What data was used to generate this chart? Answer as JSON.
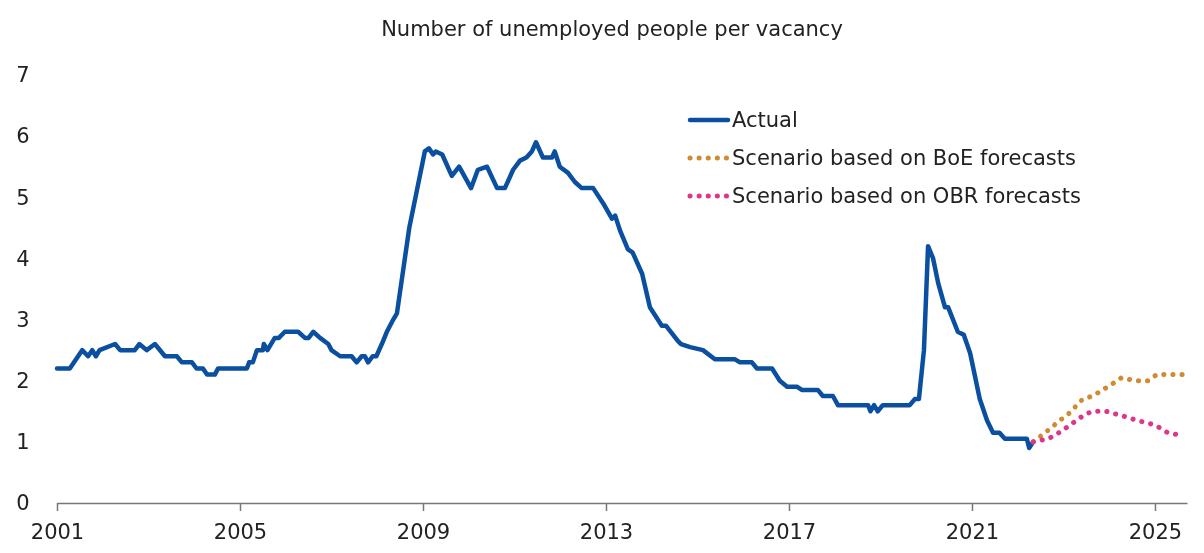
{
  "chart_data": {
    "type": "line",
    "title": "Number of unemployed people per vacancy",
    "xlim": [
      2001,
      2025.7
    ],
    "xticks": [
      2001,
      2005,
      2009,
      2013,
      2017,
      2021,
      2025
    ],
    "ylim": [
      0,
      7
    ],
    "yticks": [
      0,
      1,
      2,
      3,
      4,
      5,
      6,
      7
    ],
    "grid": false,
    "legend": "top right",
    "marker": "none",
    "series": [
      {
        "name": "Actual",
        "color": "#0a4fa0",
        "line_style": "solid",
        "x": [
          2001.0,
          2001.28,
          2001.55,
          2001.68,
          2001.77,
          2001.85,
          2001.93,
          2002.27,
          2002.38,
          2002.7,
          2002.8,
          2002.96,
          2003.14,
          2003.36,
          2003.62,
          2003.73,
          2003.95,
          2004.05,
          2004.19,
          2004.28,
          2004.45,
          2004.52,
          2005.15,
          2005.2,
          2005.28,
          2005.37,
          2005.5,
          2005.52,
          2005.6,
          2005.76,
          2005.85,
          2005.98,
          2006.27,
          2006.42,
          2006.5,
          2006.6,
          2006.75,
          2006.93,
          2007.0,
          2007.19,
          2007.44,
          2007.55,
          2007.66,
          2007.73,
          2007.8,
          2007.9,
          2007.98,
          2008.1,
          2008.21,
          2008.35,
          2008.43,
          2008.7,
          2009.04,
          2009.13,
          2009.22,
          2009.28,
          2009.42,
          2009.63,
          2009.79,
          2010.05,
          2010.2,
          2010.4,
          2010.62,
          2010.79,
          2010.97,
          2011.12,
          2011.26,
          2011.38,
          2011.47,
          2011.62,
          2011.82,
          2011.88,
          2011.99,
          2012.17,
          2012.32,
          2012.47,
          2012.72,
          2012.94,
          2013.13,
          2013.2,
          2013.31,
          2013.48,
          2013.58,
          2013.79,
          2013.96,
          2014.22,
          2014.31,
          2014.57,
          2014.64,
          2014.84,
          2015.12,
          2015.38,
          2015.82,
          2015.93,
          2016.19,
          2016.3,
          2016.63,
          2016.8,
          2016.96,
          2017.18,
          2017.28,
          2017.63,
          2017.74,
          2017.96,
          2018.07,
          2018.73,
          2018.78,
          2018.86,
          2018.94,
          2019.05,
          2019.64,
          2019.75,
          2019.84,
          2019.95,
          2020.04,
          2020.15,
          2020.26,
          2020.41,
          2020.48,
          2020.69,
          2020.82,
          2020.96,
          2021.17,
          2021.33,
          2021.46,
          2021.6,
          2021.72,
          2022.2,
          2022.25,
          2022.34
        ],
        "values": [
          2.2,
          2.2,
          2.5,
          2.4,
          2.5,
          2.4,
          2.5,
          2.6,
          2.5,
          2.5,
          2.6,
          2.5,
          2.6,
          2.4,
          2.4,
          2.3,
          2.3,
          2.2,
          2.2,
          2.1,
          2.1,
          2.2,
          2.2,
          2.3,
          2.3,
          2.5,
          2.5,
          2.6,
          2.5,
          2.7,
          2.7,
          2.8,
          2.8,
          2.7,
          2.7,
          2.8,
          2.7,
          2.6,
          2.5,
          2.4,
          2.4,
          2.3,
          2.4,
          2.4,
          2.3,
          2.4,
          2.4,
          2.6,
          2.8,
          3.0,
          3.1,
          4.5,
          5.75,
          5.8,
          5.7,
          5.75,
          5.7,
          5.35,
          5.5,
          5.15,
          5.45,
          5.5,
          5.15,
          5.15,
          5.45,
          5.6,
          5.65,
          5.75,
          5.9,
          5.65,
          5.65,
          5.75,
          5.5,
          5.4,
          5.25,
          5.15,
          5.15,
          4.9,
          4.65,
          4.7,
          4.45,
          4.15,
          4.1,
          3.75,
          3.2,
          2.9,
          2.9,
          2.65,
          2.6,
          2.55,
          2.5,
          2.35,
          2.35,
          2.3,
          2.3,
          2.2,
          2.2,
          2.0,
          1.9,
          1.9,
          1.85,
          1.85,
          1.75,
          1.75,
          1.6,
          1.6,
          1.5,
          1.6,
          1.5,
          1.6,
          1.6,
          1.7,
          1.7,
          2.5,
          4.2,
          4.0,
          3.6,
          3.2,
          3.2,
          2.8,
          2.75,
          2.45,
          1.7,
          1.35,
          1.15,
          1.15,
          1.05,
          1.05,
          0.9,
          1.0
        ]
      },
      {
        "name": "Scenario based on BoE forecasts",
        "color": "#d08a30",
        "line_style": "dotted",
        "x": [
          2022.34,
          2022.6,
          2022.92,
          2023.1,
          2023.42,
          2023.64,
          2023.86,
          2024.07,
          2024.27,
          2024.56,
          2024.85,
          2025.04,
          2025.6
        ],
        "values": [
          1.0,
          1.15,
          1.35,
          1.45,
          1.7,
          1.75,
          1.85,
          1.95,
          2.05,
          2.0,
          2.0,
          2.1,
          2.1
        ]
      },
      {
        "name": "Scenario based on OBR forecasts",
        "color": "#e0338a",
        "line_style": "dotted",
        "x": [
          2022.34,
          2022.67,
          2022.9,
          2023.1,
          2023.28,
          2023.47,
          2023.64,
          2023.93,
          2024.17,
          2024.41,
          2024.6,
          2024.89,
          2025.06,
          2025.28,
          2025.6
        ],
        "values": [
          1.0,
          1.05,
          1.15,
          1.25,
          1.35,
          1.45,
          1.5,
          1.5,
          1.45,
          1.4,
          1.35,
          1.3,
          1.25,
          1.15,
          1.1
        ]
      }
    ]
  }
}
